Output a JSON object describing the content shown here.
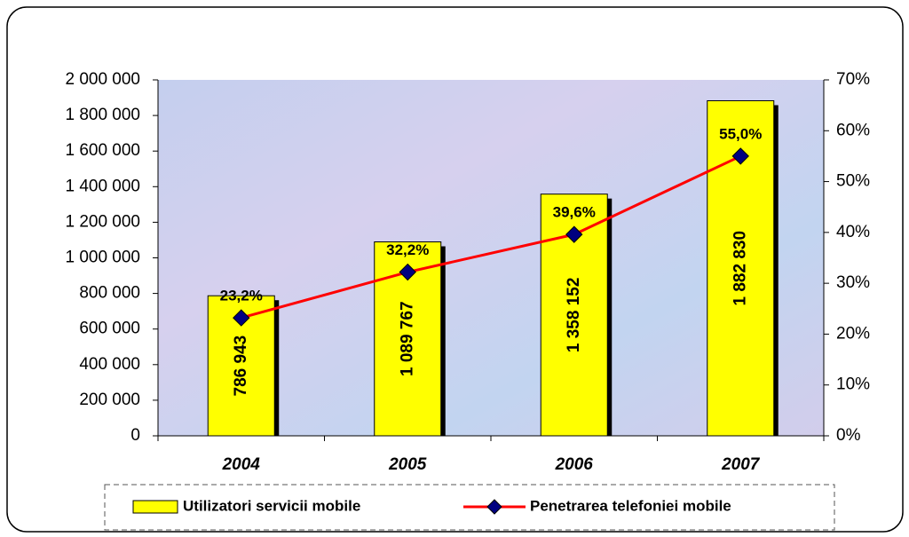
{
  "chart_data": {
    "type": "bar",
    "categories": [
      "2004",
      "2005",
      "2006",
      "2007"
    ],
    "series": [
      {
        "name": "Utilizatori servicii mobile",
        "type": "bar",
        "color": "#ffff00",
        "values": [
          786943,
          1089767,
          1358152,
          1882830
        ],
        "value_labels": [
          "786 943",
          "1 089 767",
          "1 358 152",
          "1 882 830"
        ]
      },
      {
        "name": "Penetrarea telefoniei mobile",
        "type": "line",
        "axis": "y2",
        "color": "#ff0000",
        "marker_color": "#000080",
        "values": [
          23.2,
          32.2,
          39.6,
          55.0
        ],
        "value_labels": [
          "23,2%",
          "32,2%",
          "39,6%",
          "55,0%"
        ]
      }
    ],
    "ylim": [
      0,
      2000000
    ],
    "yticks": [
      0,
      {
        "value": 200000,
        "label": "200 000"
      },
      {
        "value": 400000,
        "label": "400 000"
      },
      {
        "value": 600000,
        "label": "600 000"
      },
      {
        "value": 800000,
        "label": "800 000"
      },
      {
        "value": 1000000,
        "label": "1 000 000"
      },
      {
        "value": 1200000,
        "label": "1 200 000"
      },
      {
        "value": 1400000,
        "label": "1 400 000"
      },
      {
        "value": 1600000,
        "label": "1 600 000"
      },
      {
        "value": 1800000,
        "label": "1 800 000"
      },
      {
        "value": 2000000,
        "label": "2 000 000"
      }
    ],
    "y2lim": [
      0,
      70
    ],
    "y2ticks": [
      {
        "value": 0,
        "label": "0%"
      },
      {
        "value": 10,
        "label": "10%"
      },
      {
        "value": 20,
        "label": "20%"
      },
      {
        "value": 30,
        "label": "30%"
      },
      {
        "value": 40,
        "label": "40%"
      },
      {
        "value": 50,
        "label": "50%"
      },
      {
        "value": 60,
        "label": "60%"
      },
      {
        "value": 70,
        "label": "70%"
      }
    ],
    "legend": "bottom"
  }
}
